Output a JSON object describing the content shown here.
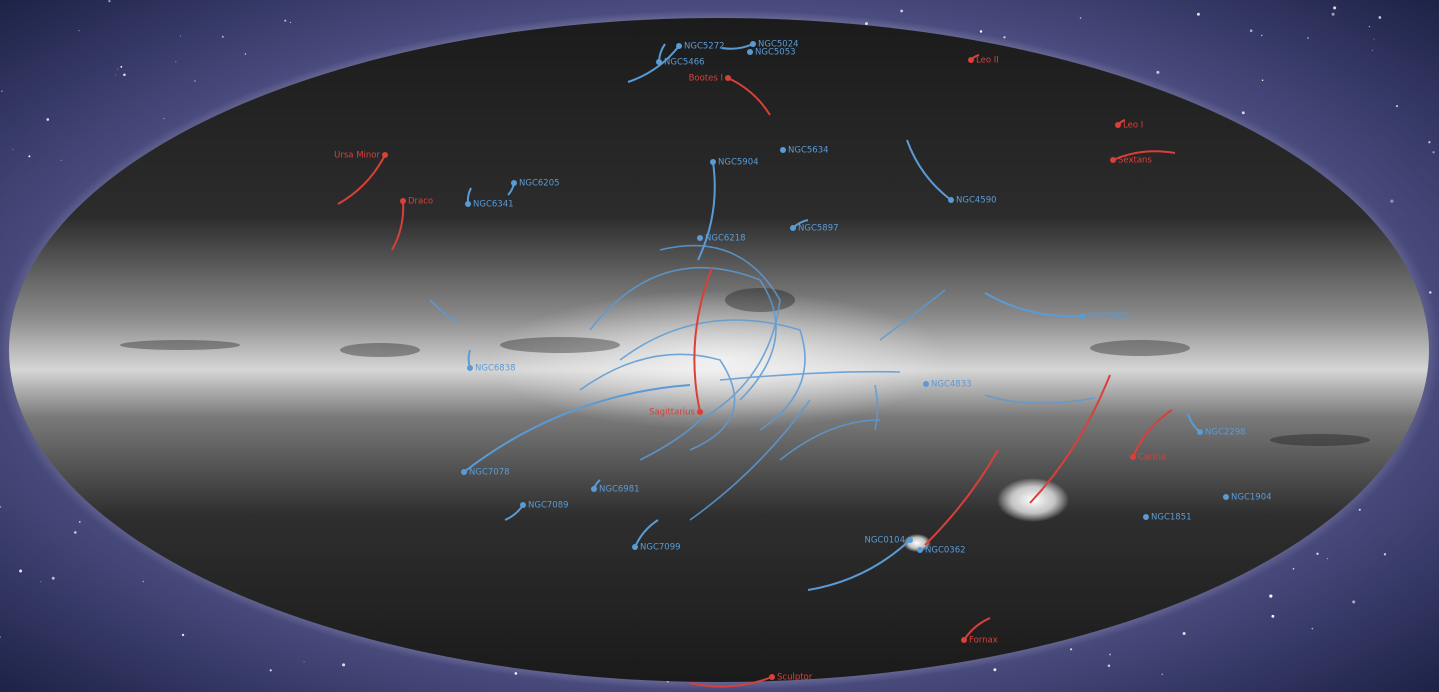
{
  "globular_clusters": [
    "NGC5272",
    "NGC5024",
    "NGC5466",
    "NGC5053",
    "NGC5904",
    "NGC5634",
    "NGC6205",
    "NGC6341",
    "NGC4590",
    "NGC5897",
    "NGC6218",
    "NGC3201",
    "NGC4833",
    "NGC6838",
    "NGC2298",
    "NGC1904",
    "NGC1851",
    "NGC7078",
    "NGC7089",
    "NGC6981",
    "NGC7099",
    "NGC0104",
    "NGC0362"
  ],
  "dwarf_galaxies": [
    "Bootes I",
    "Leo II",
    "Leo I",
    "Sextans",
    "Ursa Minor",
    "Draco",
    "Sagittarius",
    "Carina",
    "Fornax",
    "Sculptor"
  ]
}
